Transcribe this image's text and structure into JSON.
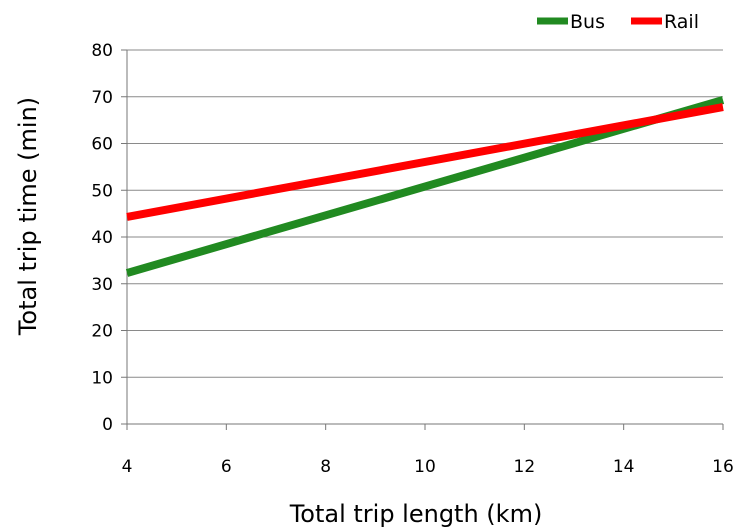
{
  "chart_data": {
    "type": "line",
    "title": "",
    "xlabel": "Total trip length (km)",
    "ylabel": "Total trip time (min)",
    "xlim": [
      4,
      16
    ],
    "ylim": [
      0,
      80
    ],
    "x_ticks": [
      "4",
      "6",
      "8",
      "10",
      "12",
      "14",
      "16"
    ],
    "y_ticks": [
      "0",
      "10",
      "20",
      "30",
      "40",
      "50",
      "60",
      "70",
      "80"
    ],
    "grid": "horizontal",
    "legend_position": "top-right",
    "series": [
      {
        "name": "Bus",
        "color": "#218a21",
        "x": [
          4,
          16
        ],
        "y": [
          32.3,
          69.3
        ]
      },
      {
        "name": "Rail",
        "color": "#ff0000",
        "x": [
          4,
          16
        ],
        "y": [
          44.3,
          67.8
        ]
      }
    ]
  }
}
